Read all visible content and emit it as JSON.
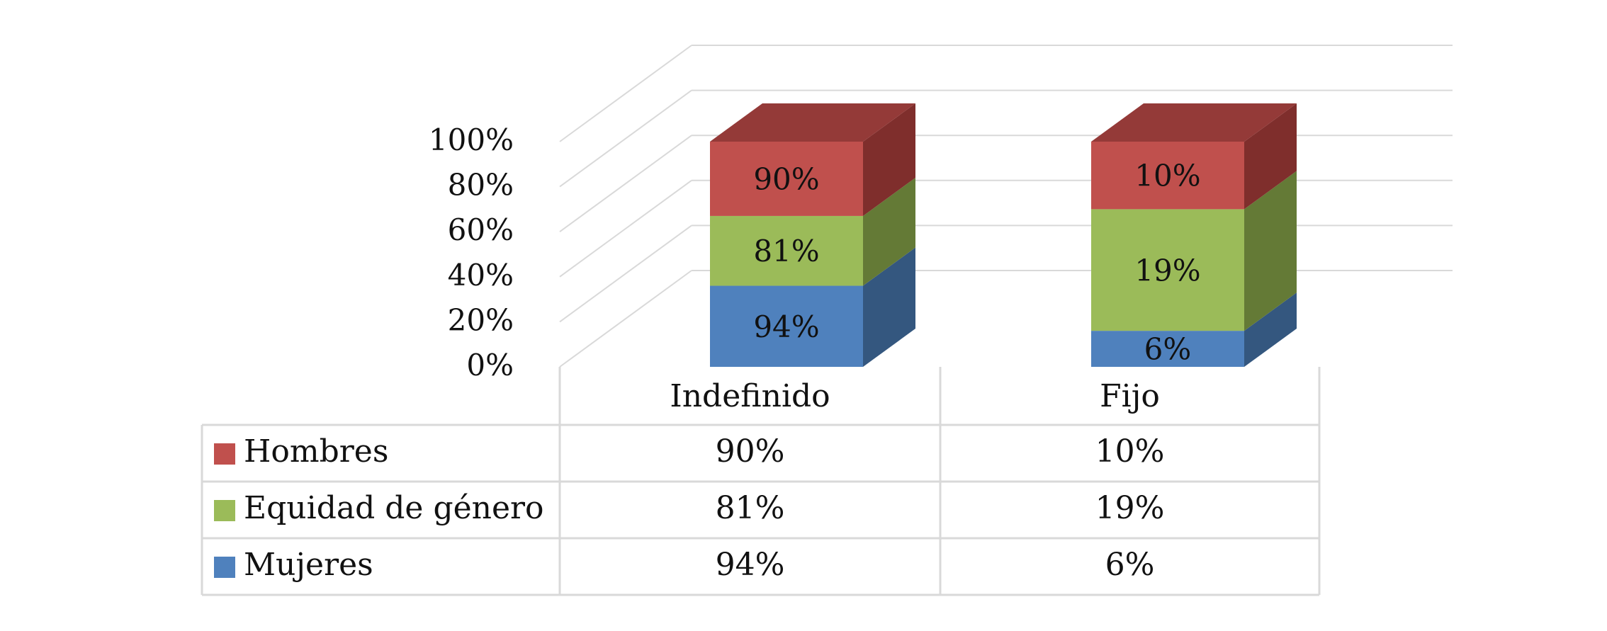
{
  "chart_data": {
    "type": "bar",
    "stacked": true,
    "three_d": true,
    "categories": [
      "Indefinido",
      "Fijo"
    ],
    "series": [
      {
        "name": "Mujeres",
        "values": [
          "94%",
          "6%"
        ],
        "color": "#4F81BD",
        "side_color": "#34577F",
        "top_color": "#41699A"
      },
      {
        "name": "Equidad de género",
        "values": [
          "81%",
          "19%"
        ],
        "color": "#9BBB59",
        "side_color": "#647A36",
        "top_color": "#7F9B44"
      },
      {
        "name": "Hombres",
        "values": [
          "90%",
          "10%"
        ],
        "color": "#C0504D",
        "side_color": "#7F2E2C",
        "top_color": "#943A38"
      }
    ],
    "segment_heights": [
      [
        0.36,
        0.31,
        0.33
      ],
      [
        0.16,
        0.54,
        0.3
      ]
    ],
    "y_ticks": [
      "0%",
      "20%",
      "40%",
      "60%",
      "80%",
      "100%"
    ],
    "ylim": [
      0,
      1
    ],
    "grid": true,
    "data_table": true,
    "legend_placement": "in data table",
    "title": "",
    "xlabel": "",
    "ylabel": ""
  }
}
